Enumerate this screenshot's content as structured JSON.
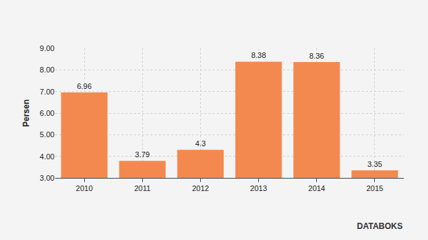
{
  "chart_data": {
    "type": "bar",
    "y_label": "Persen",
    "categories": [
      "2010",
      "2011",
      "2012",
      "2013",
      "2014",
      "2015"
    ],
    "values": [
      6.96,
      3.79,
      4.3,
      8.38,
      8.36,
      3.35
    ],
    "color": "#f4894f",
    "ylim": [
      3,
      9
    ],
    "yticks": [
      {
        "value": 3,
        "label": "3.00"
      },
      {
        "value": 4,
        "label": "4.00"
      },
      {
        "value": 5,
        "label": "5.00"
      },
      {
        "value": 6,
        "label": "6.00"
      },
      {
        "value": 7,
        "label": "7.00"
      },
      {
        "value": 8,
        "label": "8.00"
      },
      {
        "value": 9,
        "label": "9.00"
      }
    ],
    "grid": true,
    "data_labels": true,
    "annotations": [
      "DATABOKS"
    ]
  }
}
